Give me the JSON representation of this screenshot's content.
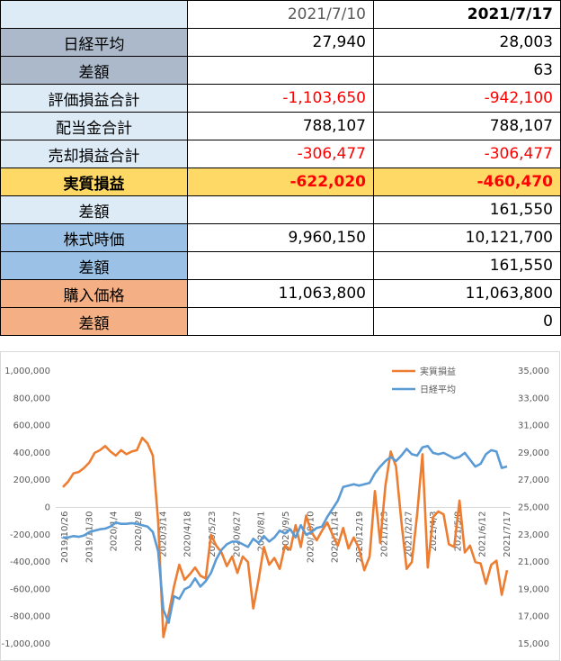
{
  "table": {
    "header": [
      "",
      "2021/7/10",
      "2021/7/17"
    ],
    "rows": [
      {
        "label": "日経平均",
        "v1": "27,940",
        "v2": "28,003",
        "bg": "#acb9ca",
        "style": "num"
      },
      {
        "label": "差額",
        "v1": "",
        "v2": "63",
        "bg": "#acb9ca",
        "style": "num"
      },
      {
        "label": "評価損益合計",
        "v1": "-1,103,650",
        "v2": "-942,100",
        "bg": "#ddebf7",
        "style": "neg"
      },
      {
        "label": "配当金合計",
        "v1": "788,107",
        "v2": "788,107",
        "bg": "#ddebf7",
        "style": "num"
      },
      {
        "label": "売却損益合計",
        "v1": "-306,477",
        "v2": "-306,477",
        "bg": "#ddebf7",
        "style": "neg"
      },
      {
        "label": "実質損益",
        "v1": "-622,020",
        "v2": "-460,470",
        "bg": "#ffd966",
        "style": "boldneg"
      },
      {
        "label": "差額",
        "v1": "",
        "v2": "161,550",
        "bg": "#ddebf7",
        "style": "num"
      },
      {
        "label": "株式時価",
        "v1": "9,960,150",
        "v2": "10,121,700",
        "bg": "#9bc2e6",
        "style": "num"
      },
      {
        "label": "差額",
        "v1": "",
        "v2": "161,550",
        "bg": "#9bc2e6",
        "style": "num"
      },
      {
        "label": "購入価格",
        "v1": "11,063,800",
        "v2": "11,063,800",
        "bg": "#f4b084",
        "style": "num"
      },
      {
        "label": "差額",
        "v1": "",
        "v2": "0",
        "bg": "#f4b084",
        "style": "num"
      }
    ],
    "header_bg": "#ddebf7"
  },
  "chart_data": {
    "type": "line",
    "x_ticks": [
      "2019/10/26",
      "2019/11/30",
      "2020/1/4",
      "2020/2/8",
      "2020/3/14",
      "2020/4/18",
      "2020/5/23",
      "2020/6/27",
      "2020/8/1",
      "2020/9/5",
      "2020/10/10",
      "2020/11/14",
      "2020/12/19",
      "2021/1/23",
      "2021/2/27",
      "2021/4/3",
      "2021/5/8",
      "2021/6/12",
      "2021/7/17"
    ],
    "left_axis": {
      "min": -1000000,
      "max": 1000000,
      "step": 200000,
      "labels": [
        "1,000,000",
        "800,000",
        "600,000",
        "400,000",
        "200,000",
        "0",
        "-200,000",
        "-400,000",
        "-600,000",
        "-800,000",
        "-1,000,000"
      ]
    },
    "right_axis": {
      "min": 15000,
      "max": 35000,
      "step": 2000,
      "labels": [
        "35,000",
        "33,000",
        "31,000",
        "29,000",
        "27,000",
        "25,000",
        "23,000",
        "21,000",
        "19,000",
        "17,000",
        "15,000"
      ]
    },
    "series": [
      {
        "name": "実質損益",
        "axis": "left",
        "color": "#ed7d31",
        "values": [
          150000,
          190000,
          250000,
          260000,
          290000,
          330000,
          400000,
          420000,
          450000,
          410000,
          380000,
          420000,
          390000,
          410000,
          420000,
          510000,
          470000,
          380000,
          -100000,
          -950000,
          -780000,
          -580000,
          -420000,
          -530000,
          -490000,
          -440000,
          -500000,
          -520000,
          -200000,
          -280000,
          -330000,
          -430000,
          -360000,
          -480000,
          -360000,
          -400000,
          -740000,
          -530000,
          -290000,
          -420000,
          -370000,
          -450000,
          -280000,
          -310000,
          -130000,
          -290000,
          -60000,
          -180000,
          -240000,
          -170000,
          -110000,
          -200000,
          -280000,
          -150000,
          -300000,
          -220000,
          -300000,
          -460000,
          -360000,
          120000,
          -260000,
          160000,
          410000,
          300000,
          -100000,
          -450000,
          -400000,
          -50000,
          390000,
          -440000,
          -70000,
          -30000,
          -50000,
          -270000,
          -290000,
          50000,
          -330000,
          -280000,
          -400000,
          -410000,
          -560000,
          -420000,
          -390000,
          -640000,
          -460000
        ]
      },
      {
        "name": "日経平均",
        "axis": "right",
        "color": "#5b9bd5",
        "values": [
          22800,
          22800,
          22900,
          22850,
          22950,
          23200,
          23300,
          23400,
          23450,
          23600,
          23900,
          23800,
          23800,
          23850,
          23800,
          23700,
          23600,
          23200,
          21800,
          17500,
          16550,
          18500,
          18300,
          19000,
          19200,
          19800,
          19200,
          19600,
          20200,
          21200,
          21900,
          22300,
          22500,
          22500,
          22300,
          22100,
          22700,
          22400,
          22900,
          22500,
          22800,
          23300,
          23100,
          23400,
          22800,
          23700,
          23000,
          23200,
          23500,
          23600,
          24300,
          24900,
          25500,
          26500,
          26600,
          26700,
          26600,
          26700,
          26800,
          27500,
          28000,
          28400,
          28700,
          28400,
          28800,
          29300,
          28900,
          28800,
          29400,
          29500,
          29000,
          28900,
          29000,
          28800,
          28600,
          28700,
          29000,
          28500,
          28000,
          28200,
          28900,
          29200,
          29100,
          27900,
          28003
        ]
      }
    ],
    "legend": {
      "position": "top-right"
    },
    "grid": false
  }
}
